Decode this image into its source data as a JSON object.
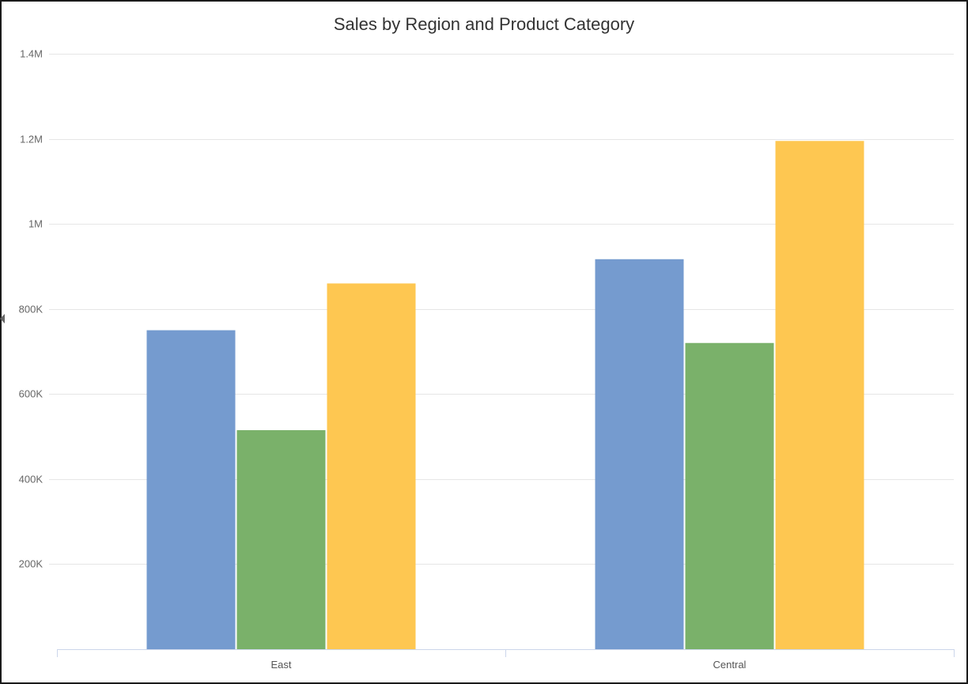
{
  "chart_data": {
    "type": "bar",
    "title": "Sales by Region and Product Category",
    "xlabel": "",
    "ylabel": "",
    "categories": [
      "East",
      "Central"
    ],
    "series": [
      {
        "values": [
          750000,
          917000
        ],
        "color": "#759bcf"
      },
      {
        "values": [
          515000,
          720000
        ],
        "color": "#7ab16a"
      },
      {
        "values": [
          860000,
          1195000
        ],
        "color": "#fec751"
      }
    ],
    "ylim": [
      0,
      1400000
    ],
    "yticks": [
      200000,
      400000,
      600000,
      800000,
      1000000,
      1200000,
      1400000
    ],
    "ytick_labels": [
      "200K",
      "400K",
      "600K",
      "800K",
      "1M",
      "1.2M",
      "1.4M"
    ],
    "grid": true,
    "legend": "none"
  }
}
